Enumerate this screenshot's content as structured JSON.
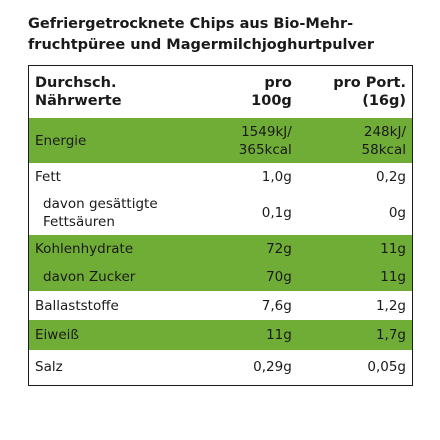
{
  "title": "Gefriergetrocknete Chips aus Bio-Mehr-\nfruchtpüree und Magermilchjoghurtpulver",
  "table": {
    "header": [
      "Durchsch.\nNährwerte",
      "pro\n100g",
      "pro Port.\n(16g)"
    ],
    "rows": [
      [
        "Energie",
        "1549kJ/\n365kcal",
        "248kJ/\n58kcal"
      ],
      [
        "Fett",
        "1,0g",
        "0,2g"
      ],
      [
        "davon gesättigte\nFettsäuren",
        "0,1g",
        "0g"
      ],
      [
        "Kohlenhydrate",
        "72g",
        "11g"
      ],
      [
        "davon Zucker",
        "70g",
        "11g"
      ],
      [
        "Ballaststoffe",
        "7,6g",
        "1,2g"
      ],
      [
        "Eiweiß",
        "11g",
        "1,7g"
      ],
      [
        "Salz",
        "0,29g",
        "0,05g"
      ]
    ]
  }
}
